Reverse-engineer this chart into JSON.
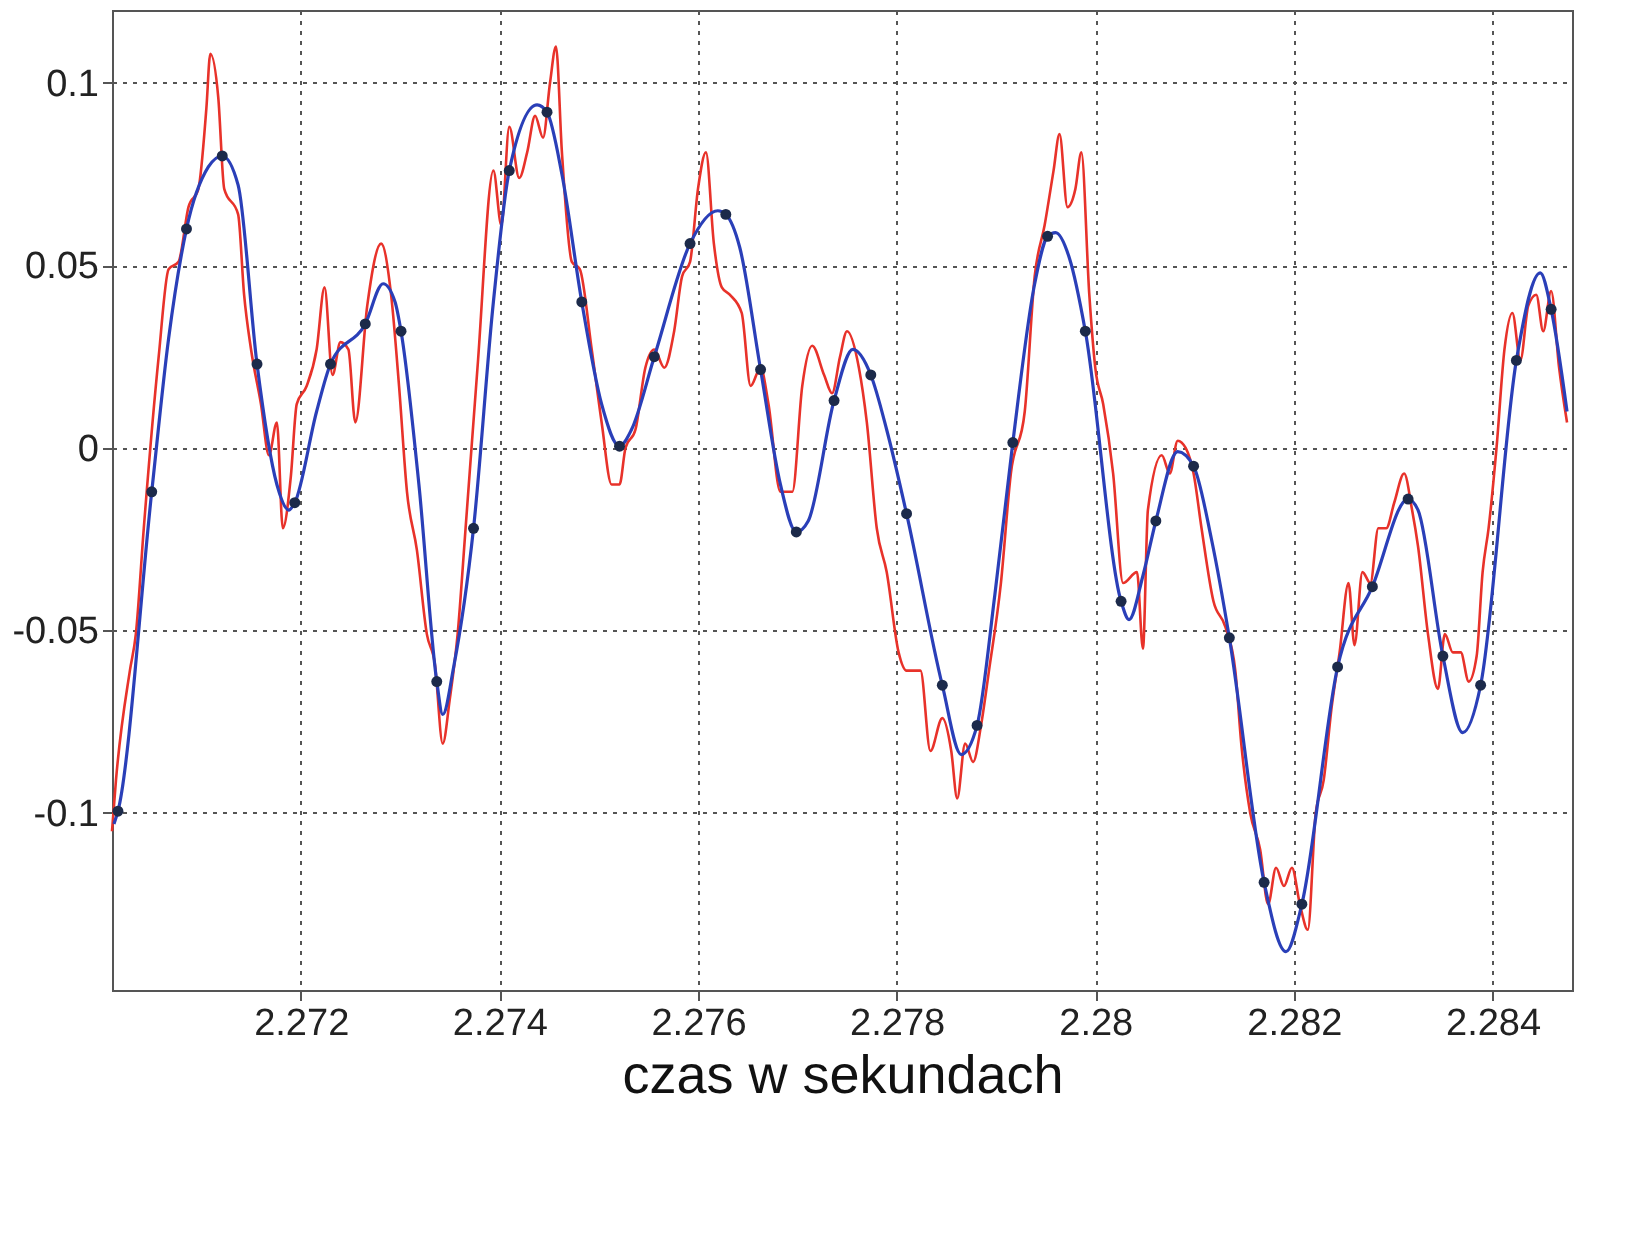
{
  "chart_data": {
    "type": "line",
    "xlabel": "czas w sekundach",
    "xlim": [
      2.2701,
      2.2848
    ],
    "ylim": [
      -0.1485,
      0.12
    ],
    "xticks": [
      2.272,
      2.274,
      2.276,
      2.278,
      2.28,
      2.282,
      2.284
    ],
    "yticks": [
      -0.1,
      -0.05,
      0,
      0.05,
      0.1
    ],
    "grid": true,
    "line_style": "solid",
    "series": [
      {
        "color": "#e8322a",
        "x": [
          2.2701,
          2.27014,
          2.27028,
          2.27034,
          2.27042,
          2.27057,
          2.27067,
          2.27077,
          2.27087,
          2.27097,
          2.27105,
          2.27109,
          2.27117,
          2.27123,
          2.27137,
          2.27143,
          2.2715,
          2.2716,
          2.27168,
          2.27176,
          2.27182,
          2.2719,
          2.27196,
          2.27206,
          2.27216,
          2.27224,
          2.27232,
          2.2724,
          2.27248,
          2.27255,
          2.27267,
          2.27281,
          2.27291,
          2.27299,
          2.27307,
          2.27317,
          2.27327,
          2.27335,
          2.27343,
          2.2735,
          2.27358,
          2.27366,
          2.27378,
          2.27394,
          2.27402,
          2.2741,
          2.2742,
          2.27428,
          2.27436,
          2.27444,
          2.27451,
          2.27457,
          2.27463,
          2.27473,
          2.27481,
          2.27493,
          2.27503,
          2.27513,
          2.27521,
          2.27527,
          2.27537,
          2.27547,
          2.27556,
          2.27566,
          2.27576,
          2.27584,
          2.27592,
          2.276,
          2.27608,
          2.27616,
          2.27624,
          2.27632,
          2.27644,
          2.27653,
          2.27663,
          2.27671,
          2.27683,
          2.27695,
          2.27705,
          2.27715,
          2.27727,
          2.27735,
          2.27743,
          2.2775,
          2.27762,
          2.2777,
          2.2778,
          2.2779,
          2.27802,
          2.2781,
          2.27824,
          2.27834,
          2.27846,
          2.27855,
          2.27861,
          2.27869,
          2.27877,
          2.27885,
          2.27893,
          2.27905,
          2.27915,
          2.27929,
          2.27939,
          2.27949,
          2.27958,
          2.27964,
          2.27972,
          2.2798,
          2.27986,
          2.27994,
          2.28,
          2.28008,
          2.28018,
          2.28028,
          2.28042,
          2.28048,
          2.28053,
          2.28067,
          2.28075,
          2.28083,
          2.28091,
          2.28099,
          2.28107,
          2.28119,
          2.28131,
          2.28141,
          2.28147,
          2.28156,
          2.28166,
          2.28174,
          2.28182,
          2.2819,
          2.28198,
          2.28206,
          2.28214,
          2.28222,
          2.2823,
          2.28238,
          2.28246,
          2.28255,
          2.28261,
          2.28269,
          2.28277,
          2.28285,
          2.28293,
          2.28301,
          2.28311,
          2.28319,
          2.28325,
          2.28335,
          2.28345,
          2.28352,
          2.2836,
          2.28368,
          2.28376,
          2.28384,
          2.2839,
          2.28396,
          2.28404,
          2.28412,
          2.2842,
          2.28428,
          2.28436,
          2.28444,
          2.28451,
          2.28459,
          2.28467,
          2.28475
        ],
        "values": [
          -0.105,
          -0.091,
          -0.061,
          -0.051,
          -0.022,
          0.025,
          0.049,
          0.051,
          0.066,
          0.071,
          0.093,
          0.108,
          0.096,
          0.071,
          0.064,
          0.042,
          0.027,
          0.012,
          -0.002,
          0.007,
          -0.022,
          -0.008,
          0.012,
          0.017,
          0.027,
          0.044,
          0.02,
          0.029,
          0.027,
          0.007,
          0.039,
          0.056,
          0.042,
          0.017,
          -0.012,
          -0.028,
          -0.051,
          -0.059,
          -0.081,
          -0.069,
          -0.051,
          -0.022,
          0.022,
          0.076,
          0.061,
          0.088,
          0.074,
          0.081,
          0.091,
          0.085,
          0.1,
          0.11,
          0.081,
          0.051,
          0.049,
          0.027,
          0.007,
          -0.01,
          -0.01,
          0,
          0.005,
          0.022,
          0.027,
          0.022,
          0.032,
          0.047,
          0.051,
          0.071,
          0.081,
          0.056,
          0.044,
          0.042,
          0.037,
          0.017,
          0.022,
          0.012,
          -0.012,
          -0.012,
          0.017,
          0.028,
          0.02,
          0.015,
          0.025,
          0.032,
          0.022,
          0.007,
          -0.022,
          -0.034,
          -0.056,
          -0.061,
          -0.061,
          -0.083,
          -0.074,
          -0.083,
          -0.096,
          -0.081,
          -0.086,
          -0.076,
          -0.061,
          -0.037,
          -0.007,
          0.01,
          0.047,
          0.061,
          0.076,
          0.086,
          0.066,
          0.071,
          0.081,
          0.042,
          0.022,
          0.012,
          -0.007,
          -0.037,
          -0.034,
          -0.055,
          -0.017,
          -0.002,
          -0.007,
          0.002,
          0,
          -0.007,
          -0.022,
          -0.042,
          -0.049,
          -0.061,
          -0.081,
          -0.1,
          -0.11,
          -0.125,
          -0.115,
          -0.12,
          -0.115,
          -0.125,
          -0.132,
          -0.1,
          -0.091,
          -0.071,
          -0.056,
          -0.037,
          -0.054,
          -0.034,
          -0.037,
          -0.022,
          -0.022,
          -0.015,
          -0.007,
          -0.017,
          -0.027,
          -0.051,
          -0.066,
          -0.051,
          -0.056,
          -0.056,
          -0.064,
          -0.057,
          -0.034,
          -0.022,
          0,
          0.027,
          0.037,
          0.024,
          0.039,
          0.042,
          0.032,
          0.043,
          0.022,
          0.007
        ]
      },
      {
        "color": "#2a3fb8",
        "x": [
          2.27012,
          2.27016,
          2.2705,
          2.27067,
          2.27085,
          2.27107,
          2.27121,
          2.27137,
          2.27156,
          2.27176,
          2.27188,
          2.27194,
          2.27216,
          2.2723,
          2.27265,
          2.27283,
          2.27295,
          2.27301,
          2.27319,
          2.27337,
          2.27343,
          2.27354,
          2.27374,
          2.27394,
          2.2741,
          2.27438,
          2.27448,
          2.27463,
          2.27483,
          2.27503,
          2.27521,
          2.27533,
          2.27556,
          2.27592,
          2.2762,
          2.27628,
          2.27642,
          2.27663,
          2.27683,
          2.27699,
          2.27711,
          2.27737,
          2.27756,
          2.27774,
          2.2779,
          2.2781,
          2.27846,
          2.27865,
          2.27881,
          2.27899,
          2.27917,
          2.27939,
          2.27952,
          2.2796,
          2.27974,
          2.2799,
          2.28026,
          2.28034,
          2.28048,
          2.28061,
          2.28083,
          2.28099,
          2.28117,
          2.28135,
          2.2817,
          2.28192,
          2.28208,
          2.28244,
          2.28279,
          2.28315,
          2.28325,
          2.2835,
          2.2837,
          2.28388,
          2.28424,
          2.28448,
          2.28459,
          2.28475
        ],
        "values": [
          -0.103,
          -0.0995,
          -0.012,
          0.03,
          0.06,
          0.077,
          0.08,
          0.072,
          0.023,
          -0.01,
          -0.017,
          -0.015,
          0.01,
          0.023,
          0.034,
          0.045,
          0.04,
          0.032,
          -0.01,
          -0.064,
          -0.073,
          -0.06,
          -0.022,
          0.04,
          0.076,
          0.094,
          0.092,
          0.075,
          0.04,
          0.012,
          0.0005,
          0.005,
          0.025,
          0.056,
          0.065,
          0.064,
          0.055,
          0.0215,
          -0.01,
          -0.023,
          -0.02,
          0.013,
          0.027,
          0.02,
          0.005,
          -0.018,
          -0.065,
          -0.084,
          -0.076,
          -0.04,
          0.0015,
          0.045,
          0.058,
          0.059,
          0.052,
          0.032,
          -0.042,
          -0.047,
          -0.035,
          -0.02,
          -0.001,
          -0.005,
          -0.025,
          -0.052,
          -0.119,
          -0.138,
          -0.125,
          -0.06,
          -0.038,
          -0.014,
          -0.017,
          -0.057,
          -0.078,
          -0.065,
          0.024,
          0.048,
          0.038,
          0.01
        ]
      },
      {
        "type": "scatter",
        "color": "#1c2a4a",
        "marker": "circle",
        "x": [
          2.27016,
          2.2705,
          2.27085,
          2.27121,
          2.27156,
          2.27194,
          2.2723,
          2.27265,
          2.27301,
          2.27337,
          2.27374,
          2.2741,
          2.27448,
          2.27483,
          2.27521,
          2.27556,
          2.27592,
          2.27628,
          2.27663,
          2.27699,
          2.27737,
          2.27774,
          2.2781,
          2.27846,
          2.27881,
          2.27917,
          2.27952,
          2.2799,
          2.28026,
          2.28061,
          2.28099,
          2.28135,
          2.2817,
          2.28208,
          2.28244,
          2.28279,
          2.28315,
          2.2835,
          2.28388,
          2.28424,
          2.28459
        ],
        "values": [
          -0.0995,
          -0.012,
          0.06,
          0.08,
          0.023,
          -0.015,
          0.023,
          0.034,
          0.032,
          -0.064,
          -0.022,
          0.076,
          0.092,
          0.04,
          0.0005,
          0.025,
          0.056,
          0.064,
          0.0215,
          -0.023,
          0.013,
          0.02,
          -0.018,
          -0.065,
          -0.076,
          0.0015,
          0.058,
          0.032,
          -0.042,
          -0.02,
          -0.005,
          -0.052,
          -0.119,
          -0.125,
          -0.06,
          -0.038,
          -0.014,
          -0.057,
          -0.065,
          0.024,
          0.038
        ]
      }
    ]
  }
}
